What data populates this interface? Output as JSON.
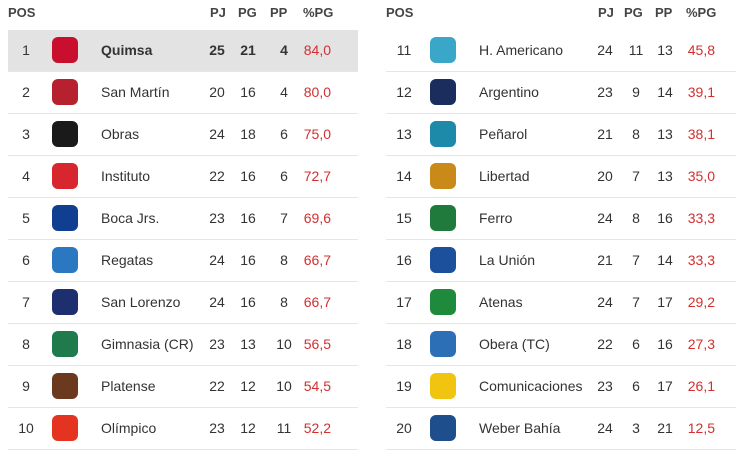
{
  "headers": {
    "pos": "POS",
    "pj": "PJ",
    "pg": "PG",
    "pp": "PP",
    "pct": "%PG"
  },
  "left": [
    {
      "pos": "1",
      "team": "Quimsa",
      "pj": "25",
      "pg": "21",
      "pp": "4",
      "pct": "84,0",
      "logo": "quimsa-logo",
      "color": "#c8102e",
      "highlight": true
    },
    {
      "pos": "2",
      "team": "San Martín",
      "pj": "20",
      "pg": "16",
      "pp": "4",
      "pct": "80,0",
      "logo": "san-martin-logo",
      "color": "#b7202e"
    },
    {
      "pos": "3",
      "team": "Obras",
      "pj": "24",
      "pg": "18",
      "pp": "6",
      "pct": "75,0",
      "logo": "obras-logo",
      "color": "#1a1a1a"
    },
    {
      "pos": "4",
      "team": "Instituto",
      "pj": "22",
      "pg": "16",
      "pp": "6",
      "pct": "72,7",
      "logo": "instituto-logo",
      "color": "#d7262e"
    },
    {
      "pos": "5",
      "team": "Boca Jrs.",
      "pj": "23",
      "pg": "16",
      "pp": "7",
      "pct": "69,6",
      "logo": "boca-logo",
      "color": "#103f91"
    },
    {
      "pos": "6",
      "team": "Regatas",
      "pj": "24",
      "pg": "16",
      "pp": "8",
      "pct": "66,7",
      "logo": "regatas-logo",
      "color": "#2a78c2"
    },
    {
      "pos": "7",
      "team": "San Lorenzo",
      "pj": "24",
      "pg": "16",
      "pp": "8",
      "pct": "66,7",
      "logo": "san-lorenzo-logo",
      "color": "#1d2f6f"
    },
    {
      "pos": "8",
      "team": "Gimnasia (CR)",
      "pj": "23",
      "pg": "13",
      "pp": "10",
      "pct": "56,5",
      "logo": "gimnasia-logo",
      "color": "#1f7a4c"
    },
    {
      "pos": "9",
      "team": "Platense",
      "pj": "22",
      "pg": "12",
      "pp": "10",
      "pct": "54,5",
      "logo": "platense-logo",
      "color": "#6b3a1e"
    },
    {
      "pos": "10",
      "team": "Olímpico",
      "pj": "23",
      "pg": "12",
      "pp": "11",
      "pct": "52,2",
      "logo": "olimpico-logo",
      "color": "#e53322"
    }
  ],
  "right": [
    {
      "pos": "11",
      "team": "H. Americano",
      "pj": "24",
      "pg": "11",
      "pp": "13",
      "pct": "45,8",
      "logo": "h-americano-logo",
      "color": "#3aa7c9"
    },
    {
      "pos": "12",
      "team": "Argentino",
      "pj": "23",
      "pg": "9",
      "pp": "14",
      "pct": "39,1",
      "logo": "argentino-logo",
      "color": "#1b2d5c"
    },
    {
      "pos": "13",
      "team": "Peñarol",
      "pj": "21",
      "pg": "8",
      "pp": "13",
      "pct": "38,1",
      "logo": "penarol-logo",
      "color": "#1c8aa8"
    },
    {
      "pos": "14",
      "team": "Libertad",
      "pj": "20",
      "pg": "7",
      "pp": "13",
      "pct": "35,0",
      "logo": "libertad-logo",
      "color": "#c98a1a"
    },
    {
      "pos": "15",
      "team": "Ferro",
      "pj": "24",
      "pg": "8",
      "pp": "16",
      "pct": "33,3",
      "logo": "ferro-logo",
      "color": "#1f7a3c"
    },
    {
      "pos": "16",
      "team": "La Unión",
      "pj": "21",
      "pg": "7",
      "pp": "14",
      "pct": "33,3",
      "logo": "la-union-logo",
      "color": "#1c4f9c"
    },
    {
      "pos": "17",
      "team": "Atenas",
      "pj": "24",
      "pg": "7",
      "pp": "17",
      "pct": "29,2",
      "logo": "atenas-logo",
      "color": "#1f8a3c"
    },
    {
      "pos": "18",
      "team": "Obera (TC)",
      "pj": "22",
      "pg": "6",
      "pp": "16",
      "pct": "27,3",
      "logo": "obera-logo",
      "color": "#2d6fb7"
    },
    {
      "pos": "19",
      "team": "Comunicaciones",
      "pj": "23",
      "pg": "6",
      "pp": "17",
      "pct": "26,1",
      "logo": "comunicaciones-logo",
      "color": "#f1c40f"
    },
    {
      "pos": "20",
      "team": "Weber Bahía",
      "pj": "24",
      "pg": "3",
      "pp": "21",
      "pct": "12,5",
      "logo": "weber-bahia-logo",
      "color": "#1f4e8c"
    }
  ]
}
